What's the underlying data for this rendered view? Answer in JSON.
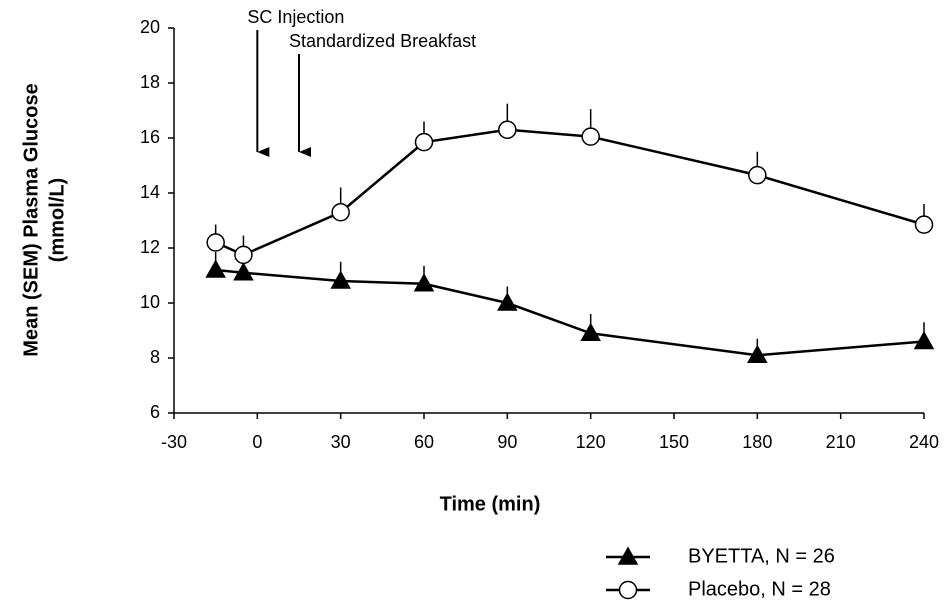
{
  "chart_data": {
    "type": "line",
    "x_label": "Time (min)",
    "y_label": [
      "Mean (SEM) Plasma Glucose",
      "(mmol/L)"
    ],
    "annotations": [
      {
        "text": "SC Injection",
        "x": 0
      },
      {
        "text": "Standardized Breakfast",
        "x": 15
      }
    ],
    "series": [
      {
        "name": "BYETTA, N = 26",
        "color": "#000000",
        "marker": "triangle",
        "marker_fill": "#000000",
        "x": [
          -15,
          -5,
          30,
          60,
          90,
          120,
          180,
          240
        ],
        "values": [
          11.2,
          11.1,
          10.8,
          10.7,
          10.0,
          8.9,
          8.1,
          8.6
        ],
        "errors": [
          0.65,
          0.6,
          0.7,
          0.65,
          0.6,
          0.7,
          0.6,
          0.7
        ]
      },
      {
        "name": "Placebo, N = 28",
        "color": "#000000",
        "marker": "circle",
        "marker_fill": "#ffffff",
        "x": [
          -15,
          -5,
          30,
          60,
          90,
          120,
          180,
          240
        ],
        "values": [
          12.2,
          11.75,
          13.3,
          15.85,
          16.3,
          16.05,
          14.65,
          12.85
        ],
        "errors": [
          0.65,
          0.7,
          0.9,
          0.75,
          0.95,
          1.0,
          0.85,
          0.75
        ]
      }
    ],
    "xlim": [
      -30,
      240
    ],
    "xticks": [
      -30,
      0,
      30,
      60,
      90,
      120,
      150,
      180,
      210,
      240
    ],
    "ylim": [
      6,
      20
    ],
    "yticks": [
      6,
      8,
      10,
      12,
      14,
      16,
      18,
      20
    ],
    "grid": false,
    "legend": "bottom-right"
  }
}
